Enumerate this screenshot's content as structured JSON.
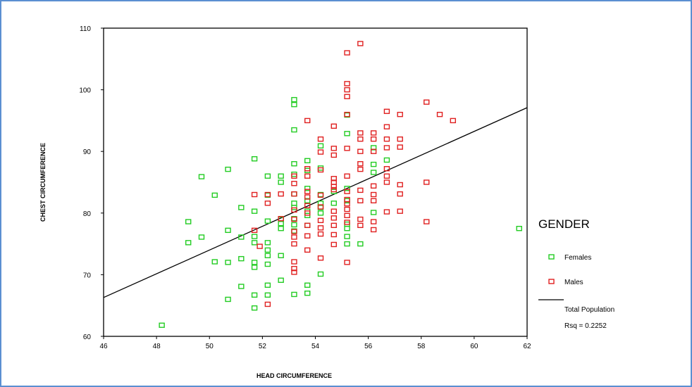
{
  "chart_data": {
    "type": "scatter",
    "title": "",
    "xlabel": "HEAD CIRCUMFERENCE",
    "ylabel": "CHEST  CIRCUMFERENCE",
    "xlim": [
      46,
      62
    ],
    "ylim": [
      60,
      110
    ],
    "xticks": [
      "46",
      "48",
      "50",
      "52",
      "54",
      "56",
      "58",
      "60",
      "62"
    ],
    "yticks": [
      "60",
      "70",
      "80",
      "90",
      "100",
      "110"
    ],
    "legend_title": "GENDER",
    "legend_placement": "right",
    "fit_line": {
      "label": "Total Population",
      "rsq_label": "Rsq = 0.2252",
      "x": [
        46,
        62
      ],
      "y": [
        66.3,
        97.1
      ],
      "color": "#000000"
    },
    "series": [
      {
        "name": "Females",
        "color": "#22cc22",
        "points": [
          [
            48.2,
            61.8
          ],
          [
            49.2,
            78.6
          ],
          [
            49.2,
            75.2
          ],
          [
            49.7,
            85.9
          ],
          [
            49.7,
            76.1
          ],
          [
            50.2,
            82.9
          ],
          [
            50.2,
            72.1
          ],
          [
            50.7,
            87.1
          ],
          [
            50.7,
            77.2
          ],
          [
            50.7,
            72.0
          ],
          [
            50.7,
            66.0
          ],
          [
            51.2,
            80.9
          ],
          [
            51.2,
            76.1
          ],
          [
            51.2,
            72.6
          ],
          [
            51.2,
            68.1
          ],
          [
            51.7,
            88.8
          ],
          [
            51.7,
            80.3
          ],
          [
            51.7,
            76.2
          ],
          [
            51.7,
            75.2
          ],
          [
            51.7,
            72.0
          ],
          [
            51.7,
            71.2
          ],
          [
            51.7,
            66.7
          ],
          [
            51.7,
            64.6
          ],
          [
            52.2,
            86.0
          ],
          [
            52.2,
            82.9
          ],
          [
            52.2,
            78.7
          ],
          [
            52.2,
            75.2
          ],
          [
            52.2,
            74.0
          ],
          [
            52.2,
            73.1
          ],
          [
            52.2,
            71.7
          ],
          [
            52.2,
            68.3
          ],
          [
            52.2,
            66.7
          ],
          [
            52.7,
            86.0
          ],
          [
            52.7,
            85.0
          ],
          [
            52.7,
            79.0
          ],
          [
            52.7,
            78.3
          ],
          [
            52.7,
            77.5
          ],
          [
            52.7,
            73.1
          ],
          [
            52.7,
            69.1
          ],
          [
            53.2,
            98.4
          ],
          [
            53.2,
            97.6
          ],
          [
            53.2,
            93.5
          ],
          [
            53.2,
            88.0
          ],
          [
            53.2,
            86.3
          ],
          [
            53.2,
            83.1
          ],
          [
            53.2,
            81.6
          ],
          [
            53.2,
            80.9
          ],
          [
            53.2,
            79.1
          ],
          [
            53.2,
            78.1
          ],
          [
            53.2,
            77.1
          ],
          [
            53.2,
            66.8
          ],
          [
            53.7,
            88.5
          ],
          [
            53.7,
            86.9
          ],
          [
            53.7,
            84.0
          ],
          [
            53.7,
            82.0
          ],
          [
            53.7,
            80.3
          ],
          [
            53.7,
            79.6
          ],
          [
            53.7,
            78.0
          ],
          [
            53.7,
            68.3
          ],
          [
            53.7,
            67.0
          ],
          [
            54.2,
            90.9
          ],
          [
            54.2,
            87.3
          ],
          [
            54.2,
            83.0
          ],
          [
            54.2,
            81.6
          ],
          [
            54.2,
            80.9
          ],
          [
            54.2,
            80.0
          ],
          [
            54.2,
            70.1
          ],
          [
            54.7,
            83.5
          ],
          [
            54.7,
            81.6
          ],
          [
            55.2,
            95.9
          ],
          [
            55.2,
            92.9
          ],
          [
            55.2,
            84.0
          ],
          [
            55.2,
            82.0
          ],
          [
            55.2,
            78.2
          ],
          [
            55.2,
            77.5
          ],
          [
            55.2,
            76.2
          ],
          [
            55.2,
            75.0
          ],
          [
            55.7,
            75.0
          ],
          [
            56.2,
            90.6
          ],
          [
            56.2,
            87.9
          ],
          [
            56.2,
            86.6
          ],
          [
            56.2,
            80.1
          ],
          [
            56.7,
            88.6
          ],
          [
            61.7,
            77.5
          ]
        ]
      },
      {
        "name": "Males",
        "color": "#e02020",
        "points": [
          [
            51.7,
            83.0
          ],
          [
            51.7,
            77.2
          ],
          [
            51.9,
            74.6
          ],
          [
            52.2,
            83.0
          ],
          [
            52.2,
            81.6
          ],
          [
            52.2,
            65.2
          ],
          [
            52.7,
            83.1
          ],
          [
            52.7,
            79.1
          ],
          [
            53.2,
            86.0
          ],
          [
            53.2,
            84.8
          ],
          [
            53.2,
            83.1
          ],
          [
            53.2,
            80.5
          ],
          [
            53.2,
            79.0
          ],
          [
            53.2,
            77.0
          ],
          [
            53.2,
            76.1
          ],
          [
            53.2,
            75.0
          ],
          [
            53.2,
            72.1
          ],
          [
            53.2,
            71.0
          ],
          [
            53.2,
            70.4
          ],
          [
            53.7,
            95.0
          ],
          [
            53.7,
            87.2
          ],
          [
            53.7,
            86.0
          ],
          [
            53.7,
            83.5
          ],
          [
            53.7,
            82.6
          ],
          [
            53.7,
            81.2
          ],
          [
            53.7,
            80.0
          ],
          [
            53.7,
            78.0
          ],
          [
            53.7,
            76.3
          ],
          [
            53.7,
            74.0
          ],
          [
            54.2,
            92.0
          ],
          [
            54.2,
            89.9
          ],
          [
            54.2,
            87.0
          ],
          [
            54.2,
            82.9
          ],
          [
            54.2,
            81.0
          ],
          [
            54.2,
            78.8
          ],
          [
            54.2,
            77.6
          ],
          [
            54.2,
            76.6
          ],
          [
            54.2,
            72.7
          ],
          [
            54.7,
            94.1
          ],
          [
            54.7,
            90.5
          ],
          [
            54.7,
            89.4
          ],
          [
            54.7,
            85.6
          ],
          [
            54.7,
            85.0
          ],
          [
            54.7,
            84.3
          ],
          [
            54.7,
            83.8
          ],
          [
            54.7,
            80.3
          ],
          [
            54.7,
            79.2
          ],
          [
            54.7,
            78.0
          ],
          [
            54.7,
            76.5
          ],
          [
            54.7,
            74.9
          ],
          [
            55.2,
            106.0
          ],
          [
            55.2,
            101.0
          ],
          [
            55.2,
            100.0
          ],
          [
            55.2,
            98.9
          ],
          [
            55.2,
            96.0
          ],
          [
            55.2,
            90.5
          ],
          [
            55.2,
            86.0
          ],
          [
            55.2,
            83.5
          ],
          [
            55.2,
            82.2
          ],
          [
            55.2,
            81.5
          ],
          [
            55.2,
            80.6
          ],
          [
            55.2,
            79.6
          ],
          [
            55.2,
            78.5
          ],
          [
            55.2,
            72.0
          ],
          [
            55.7,
            107.5
          ],
          [
            55.7,
            93.0
          ],
          [
            55.7,
            92.0
          ],
          [
            55.7,
            90.0
          ],
          [
            55.7,
            88.0
          ],
          [
            55.7,
            87.1
          ],
          [
            55.7,
            83.7
          ],
          [
            55.7,
            82.0
          ],
          [
            55.7,
            79.0
          ],
          [
            55.7,
            78.0
          ],
          [
            56.2,
            93.0
          ],
          [
            56.2,
            92.0
          ],
          [
            56.2,
            90.0
          ],
          [
            56.2,
            84.4
          ],
          [
            56.2,
            83.0
          ],
          [
            56.2,
            82.0
          ],
          [
            56.2,
            78.6
          ],
          [
            56.2,
            77.3
          ],
          [
            56.7,
            96.5
          ],
          [
            56.7,
            94.0
          ],
          [
            56.7,
            92.0
          ],
          [
            56.7,
            90.6
          ],
          [
            56.7,
            87.2
          ],
          [
            56.7,
            86.0
          ],
          [
            56.7,
            85.0
          ],
          [
            56.7,
            80.2
          ],
          [
            57.2,
            96.0
          ],
          [
            57.2,
            92.0
          ],
          [
            57.2,
            90.7
          ],
          [
            57.2,
            84.6
          ],
          [
            57.2,
            83.1
          ],
          [
            57.2,
            80.3
          ],
          [
            58.2,
            98.0
          ],
          [
            58.2,
            85.0
          ],
          [
            58.2,
            78.6
          ],
          [
            58.7,
            96.0
          ],
          [
            59.2,
            95.0
          ]
        ]
      }
    ]
  }
}
